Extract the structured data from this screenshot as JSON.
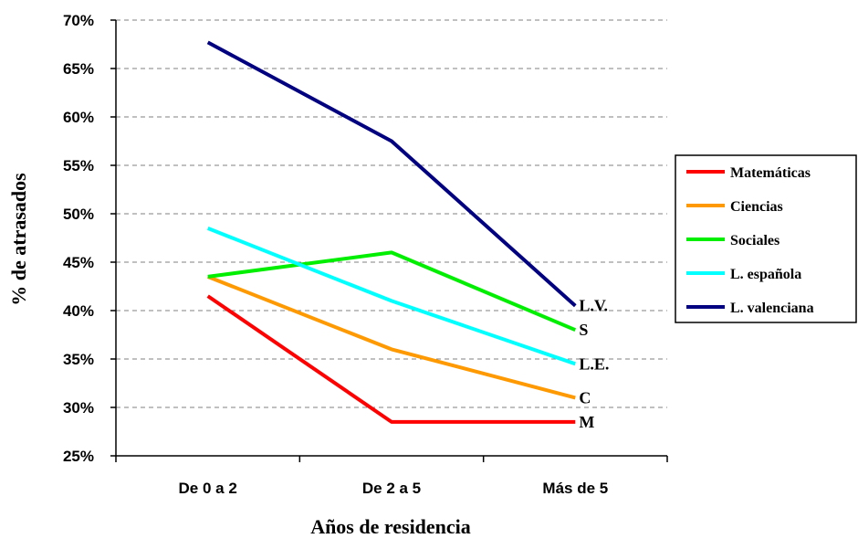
{
  "chart_data": {
    "type": "line",
    "categories": [
      "De 0 a 2",
      "De 2 a 5",
      "Más de 5"
    ],
    "series": [
      {
        "name": "Matemáticas",
        "short": "M",
        "color": "#ff0000",
        "values": [
          41.5,
          28.5,
          28.5
        ]
      },
      {
        "name": "Ciencias",
        "short": "C",
        "color": "#ff9900",
        "values": [
          43.5,
          36.0,
          31.0
        ]
      },
      {
        "name": "Sociales",
        "short": "S",
        "color": "#00ee00",
        "values": [
          43.5,
          46.0,
          38.0
        ]
      },
      {
        "name": "L. española",
        "short": "L.E.",
        "color": "#00ffff",
        "values": [
          48.5,
          41.0,
          34.5
        ]
      },
      {
        "name": "L. valenciana",
        "short": "L.V.",
        "color": "#000080",
        "values": [
          67.7,
          57.5,
          40.5
        ]
      }
    ],
    "yticks": [
      "25%",
      "30%",
      "35%",
      "40%",
      "45%",
      "50%",
      "55%",
      "60%",
      "65%",
      "70%"
    ],
    "ylim": [
      25,
      70
    ],
    "ystep": 5,
    "xlabel": "Años de residencia",
    "ylabel": "% de atrasados",
    "grid": true,
    "legend_position": "right"
  }
}
